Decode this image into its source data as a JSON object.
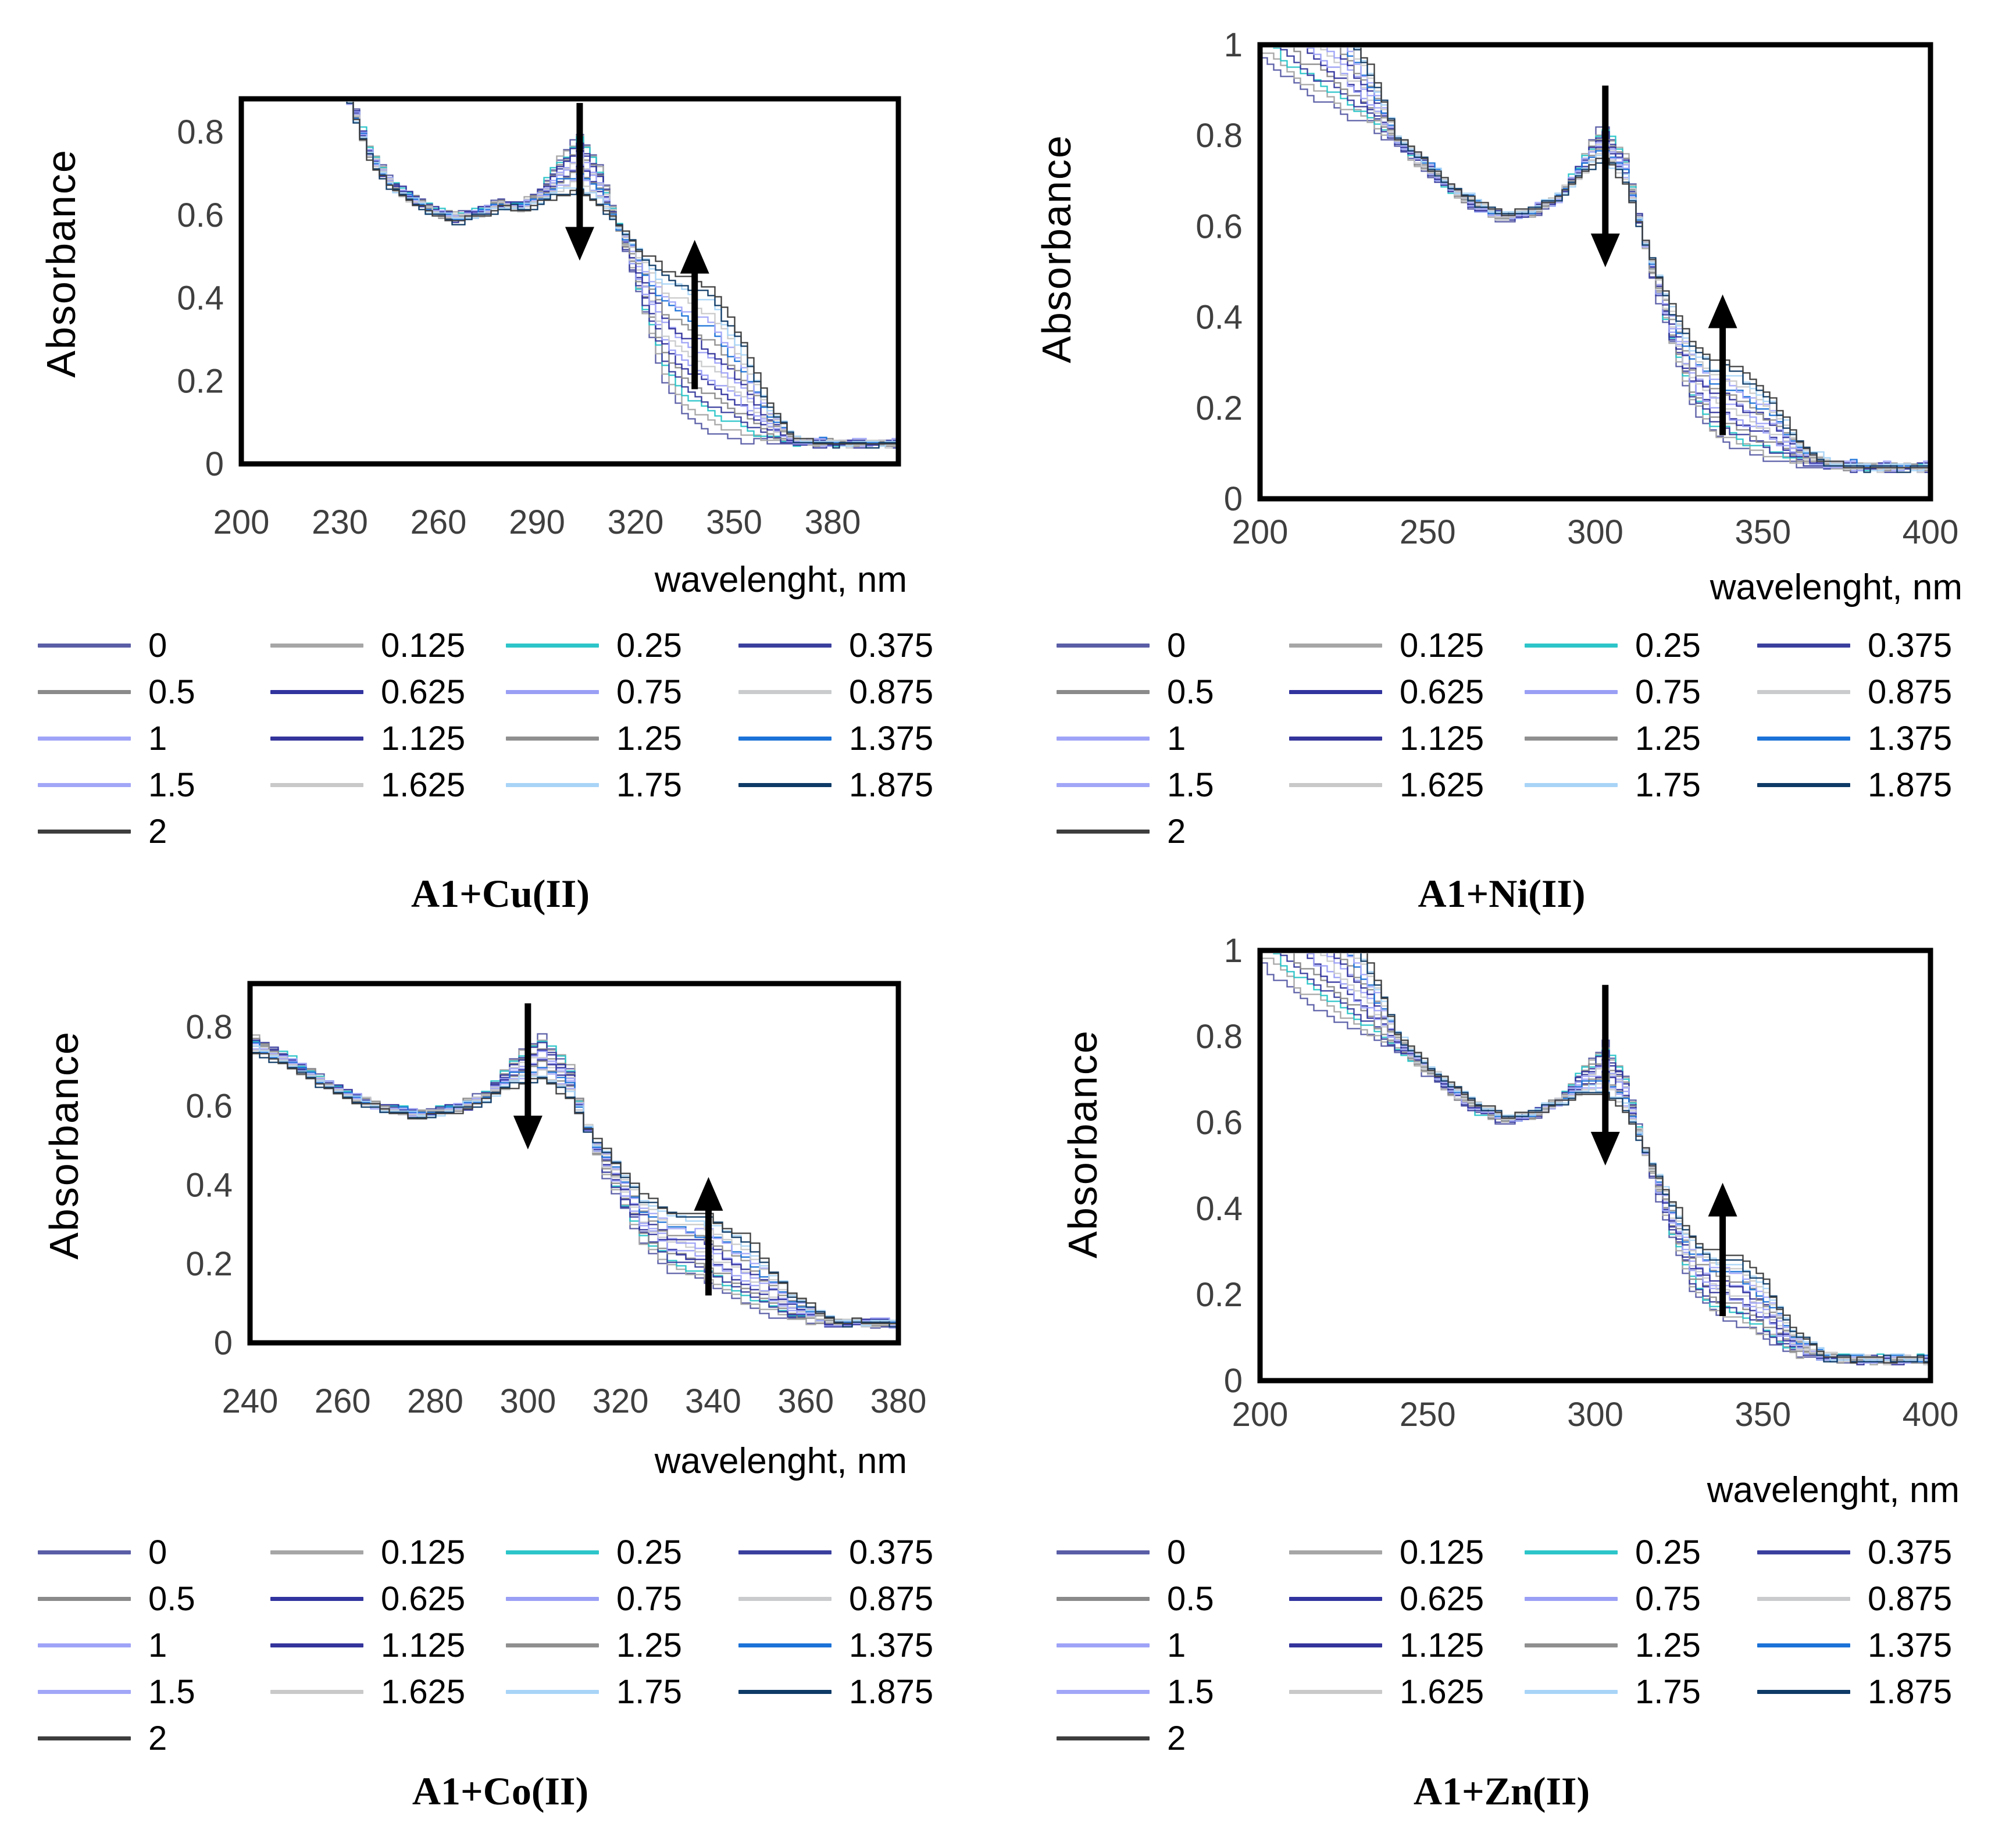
{
  "legend": {
    "entries": [
      {
        "label": "0",
        "color": "#5a5ea6"
      },
      {
        "label": "0.125",
        "color": "#a6a6a6"
      },
      {
        "label": "0.25",
        "color": "#2cc5c9"
      },
      {
        "label": "0.375",
        "color": "#3a3f9e"
      },
      {
        "label": "0.5",
        "color": "#8a8a8a"
      },
      {
        "label": "0.625",
        "color": "#31339e"
      },
      {
        "label": "0.75",
        "color": "#9a9ff5"
      },
      {
        "label": "0.875",
        "color": "#c9cbcd"
      },
      {
        "label": "1",
        "color": "#9fa3f7"
      },
      {
        "label": "1.125",
        "color": "#34349c"
      },
      {
        "label": "1.25",
        "color": "#8f8f8f"
      },
      {
        "label": "1.375",
        "color": "#1b72d8"
      },
      {
        "label": "1.5",
        "color": "#a2a6f7"
      },
      {
        "label": "1.625",
        "color": "#c9c9c9"
      },
      {
        "label": "1.75",
        "color": "#a8d4f7"
      },
      {
        "label": "1.875",
        "color": "#0e3a66"
      },
      {
        "label": "2",
        "color": "#3d3d3d"
      }
    ]
  },
  "chart_data": [
    {
      "type": "line",
      "title": "A1+Cu(II)",
      "xlabel": "wavelenght, nm",
      "ylabel": "Absorbance",
      "xlim": [
        200,
        400
      ],
      "ylim": [
        0,
        0.88
      ],
      "xticks": [
        200,
        230,
        260,
        290,
        320,
        350,
        380
      ],
      "yticks": [
        0,
        0.2,
        0.4,
        0.6,
        0.8
      ],
      "legend_position": "below",
      "grid": false,
      "titration_ratios": [
        0,
        0.125,
        0.25,
        0.375,
        0.5,
        0.625,
        0.75,
        0.875,
        1,
        1.125,
        1.25,
        1.375,
        1.5,
        1.625,
        1.75,
        1.875,
        2
      ],
      "anchors_nm": [
        200,
        225,
        232,
        238,
        245,
        252,
        258,
        265,
        272,
        278,
        284,
        290,
        296,
        302,
        308,
        315,
        322,
        328,
        334,
        342,
        352,
        360,
        368,
        380,
        400
      ],
      "absorbance_ratio_0": [
        1.3,
        1.05,
        0.9,
        0.76,
        0.68,
        0.645,
        0.615,
        0.6,
        0.615,
        0.635,
        0.625,
        0.66,
        0.74,
        0.8,
        0.72,
        0.545,
        0.36,
        0.2,
        0.125,
        0.08,
        0.058,
        0.052,
        0.05,
        0.05,
        0.05
      ],
      "absorbance_ratio_2": [
        1.25,
        1.0,
        0.87,
        0.74,
        0.66,
        0.63,
        0.6,
        0.585,
        0.6,
        0.62,
        0.615,
        0.63,
        0.65,
        0.655,
        0.625,
        0.565,
        0.505,
        0.47,
        0.455,
        0.43,
        0.295,
        0.14,
        0.06,
        0.05,
        0.05
      ],
      "arrows": [
        {
          "direction": "down",
          "x_nm": 303,
          "y_start": 0.87,
          "y_end": 0.49
        },
        {
          "direction": "up",
          "x_nm": 338,
          "y_start": 0.18,
          "y_end": 0.54
        }
      ]
    },
    {
      "type": "line",
      "title": "A1+Ni(II)",
      "xlabel": "wavelenght, nm",
      "ylabel": "Absorbance",
      "xlim": [
        200,
        400
      ],
      "ylim": [
        0,
        1
      ],
      "xticks": [
        200,
        250,
        300,
        350,
        400
      ],
      "yticks": [
        0,
        0.2,
        0.4,
        0.6,
        0.8,
        1
      ],
      "legend_position": "below",
      "grid": false,
      "titration_ratios": [
        0,
        0.125,
        0.25,
        0.375,
        0.5,
        0.625,
        0.75,
        0.875,
        1,
        1.125,
        1.25,
        1.375,
        1.5,
        1.625,
        1.75,
        1.875,
        2
      ],
      "anchors_nm": [
        200,
        212,
        222,
        232,
        240,
        248,
        256,
        264,
        272,
        280,
        288,
        295,
        301,
        308,
        315,
        322,
        328,
        334,
        342,
        352,
        360,
        368,
        380,
        400
      ],
      "absorbance_ratio_0": [
        0.97,
        0.9,
        0.86,
        0.825,
        0.78,
        0.73,
        0.675,
        0.635,
        0.615,
        0.63,
        0.66,
        0.745,
        0.825,
        0.755,
        0.52,
        0.34,
        0.21,
        0.145,
        0.11,
        0.088,
        0.078,
        0.072,
        0.07,
        0.07
      ],
      "absorbance_ratio_2": [
        1.3,
        1.18,
        1.09,
        0.95,
        0.8,
        0.745,
        0.695,
        0.655,
        0.625,
        0.64,
        0.665,
        0.715,
        0.75,
        0.7,
        0.545,
        0.425,
        0.345,
        0.305,
        0.29,
        0.225,
        0.125,
        0.082,
        0.07,
        0.07
      ],
      "arrows": [
        {
          "direction": "down",
          "x_nm": 303,
          "y_start": 0.91,
          "y_end": 0.51
        },
        {
          "direction": "up",
          "x_nm": 338,
          "y_start": 0.14,
          "y_end": 0.45
        }
      ]
    },
    {
      "type": "line",
      "title": "A1+Co(II)",
      "xlabel": "wavelenght, nm",
      "ylabel": "Absorbance",
      "xlim": [
        240,
        380
      ],
      "ylim": [
        0,
        0.91
      ],
      "xticks": [
        240,
        260,
        280,
        300,
        320,
        340,
        360,
        380
      ],
      "yticks": [
        0,
        0.2,
        0.4,
        0.6,
        0.8
      ],
      "legend_position": "below",
      "grid": false,
      "titration_ratios": [
        0,
        0.125,
        0.25,
        0.375,
        0.5,
        0.625,
        0.75,
        0.875,
        1,
        1.125,
        1.25,
        1.375,
        1.5,
        1.625,
        1.75,
        1.875,
        2
      ],
      "anchors_nm": [
        240,
        248,
        256,
        262,
        268,
        276,
        284,
        290,
        296,
        302,
        308,
        313,
        318,
        324,
        330,
        338,
        346,
        356,
        365,
        380
      ],
      "absorbance_ratio_0": [
        0.775,
        0.72,
        0.66,
        0.625,
        0.6,
        0.585,
        0.6,
        0.635,
        0.72,
        0.78,
        0.7,
        0.5,
        0.38,
        0.25,
        0.185,
        0.155,
        0.095,
        0.058,
        0.05,
        0.05
      ],
      "absorbance_ratio_2": [
        0.74,
        0.7,
        0.645,
        0.615,
        0.59,
        0.575,
        0.59,
        0.615,
        0.655,
        0.665,
        0.625,
        0.525,
        0.465,
        0.375,
        0.335,
        0.325,
        0.27,
        0.13,
        0.055,
        0.05
      ],
      "arrows": [
        {
          "direction": "down",
          "x_nm": 300,
          "y_start": 0.86,
          "y_end": 0.49
        },
        {
          "direction": "up",
          "x_nm": 339,
          "y_start": 0.12,
          "y_end": 0.42
        }
      ]
    },
    {
      "type": "line",
      "title": "A1+Zn(II)",
      "xlabel": "wavelenght, nm",
      "ylabel": "Absorbance",
      "xlim": [
        200,
        400
      ],
      "ylim": [
        0,
        1
      ],
      "xticks": [
        200,
        250,
        300,
        350,
        400
      ],
      "yticks": [
        0,
        0.2,
        0.4,
        0.6,
        0.8,
        1
      ],
      "legend_position": "below",
      "grid": false,
      "titration_ratios": [
        0,
        0.125,
        0.25,
        0.375,
        0.5,
        0.625,
        0.75,
        0.875,
        1,
        1.125,
        1.25,
        1.375,
        1.5,
        1.625,
        1.75,
        1.875,
        2
      ],
      "anchors_nm": [
        200,
        212,
        222,
        232,
        240,
        248,
        256,
        264,
        272,
        280,
        288,
        295,
        302,
        308,
        315,
        322,
        328,
        334,
        342,
        350,
        358,
        368,
        380,
        400
      ],
      "absorbance_ratio_0": [
        0.97,
        0.89,
        0.84,
        0.8,
        0.77,
        0.72,
        0.67,
        0.625,
        0.6,
        0.615,
        0.65,
        0.72,
        0.785,
        0.71,
        0.5,
        0.335,
        0.215,
        0.16,
        0.135,
        0.1,
        0.062,
        0.05,
        0.05,
        0.05
      ],
      "absorbance_ratio_2": [
        1.3,
        1.2,
        1.1,
        0.97,
        0.81,
        0.745,
        0.69,
        0.645,
        0.615,
        0.625,
        0.645,
        0.665,
        0.665,
        0.63,
        0.52,
        0.42,
        0.335,
        0.3,
        0.29,
        0.23,
        0.12,
        0.058,
        0.05,
        0.05
      ],
      "arrows": [
        {
          "direction": "down",
          "x_nm": 303,
          "y_start": 0.92,
          "y_end": 0.5
        },
        {
          "direction": "up",
          "x_nm": 338,
          "y_start": 0.15,
          "y_end": 0.46
        }
      ]
    }
  ]
}
